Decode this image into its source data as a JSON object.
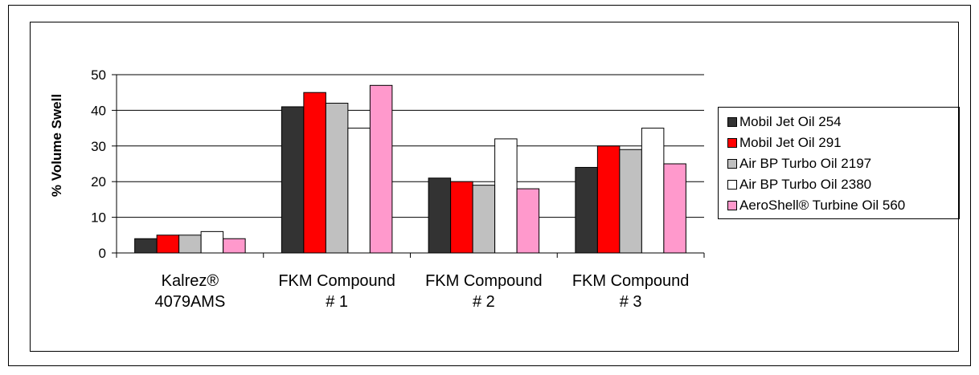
{
  "chart_data": {
    "type": "bar",
    "title": "",
    "xlabel": "",
    "ylabel": "% Volume Swell",
    "ylim": [
      0,
      50
    ],
    "yticks": [
      0,
      10,
      20,
      30,
      40,
      50
    ],
    "grid": true,
    "legend_position": "right",
    "categories": [
      [
        "Kalrez®",
        "4079AMS"
      ],
      [
        "FKM Compound",
        "# 1"
      ],
      [
        "FKM Compound",
        "# 2"
      ],
      [
        "FKM Compound",
        "# 3"
      ]
    ],
    "series": [
      {
        "name": "Mobil Jet Oil 254",
        "color": "#333333",
        "values": [
          4,
          41,
          21,
          24
        ]
      },
      {
        "name": "Mobil Jet Oil 291",
        "color": "#ff0000",
        "values": [
          5,
          45,
          20,
          30
        ]
      },
      {
        "name": "Air BP Turbo Oil 2197",
        "color": "#c0c0c0",
        "values": [
          5,
          42,
          19,
          29
        ]
      },
      {
        "name": "Air BP Turbo Oil 2380",
        "color": "#ffffff",
        "values": [
          6,
          35,
          32,
          35
        ]
      },
      {
        "name": "AeroShell® Turbine Oil 560",
        "color": "#ff99cc",
        "values": [
          4,
          47,
          18,
          25
        ]
      }
    ]
  }
}
